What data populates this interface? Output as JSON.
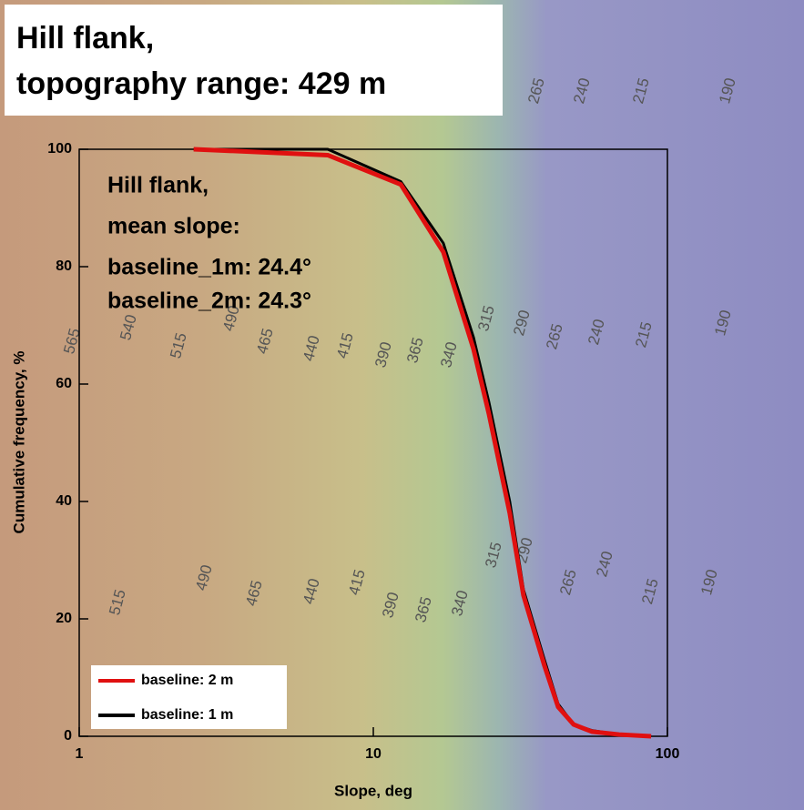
{
  "chart_data": {
    "type": "line",
    "title": [
      "Hill flank,",
      "topography range: 429 m"
    ],
    "annotation": [
      "Hill flank,",
      "mean slope:",
      "baseline_1m: 24.4°",
      "baseline_2m: 24.3°"
    ],
    "x_label": "Slope, deg",
    "y_label": "Cumulative frequency, %",
    "x_scale": "log",
    "xlim": [
      1,
      100
    ],
    "xticks": [
      1,
      10,
      100
    ],
    "ylim": [
      0,
      100
    ],
    "yticks": [
      0,
      20,
      40,
      60,
      80,
      100
    ],
    "legend": "lower left",
    "x": [
      2.45,
      7,
      12.4,
      17.3,
      21.9,
      24.7,
      29.1,
      32.4,
      38.2,
      42.5,
      48,
      55.3,
      68.5,
      88
    ],
    "series": [
      {
        "name": "baseline: 2 m",
        "color": "#e01010",
        "values": [
          100,
          99,
          94,
          82.5,
          66,
          55,
          38,
          24,
          12,
          5,
          2,
          0.8,
          0.3,
          0
        ]
      },
      {
        "name": "baseline: 1 m",
        "color": "#000000",
        "values": [
          100,
          100,
          94.5,
          84,
          68,
          57,
          40,
          25,
          13,
          5.5,
          2,
          1,
          0.3,
          0
        ]
      }
    ],
    "map_labels": [
      "265",
      "240",
      "215",
      "190",
      "565",
      "540",
      "515",
      "490",
      "465",
      "440",
      "415",
      "390",
      "365",
      "340",
      "315",
      "290",
      "265",
      "240",
      "215",
      "190",
      "515",
      "490",
      "465",
      "440",
      "415",
      "390",
      "365",
      "340",
      "315",
      "290",
      "265",
      "240",
      "215",
      "190"
    ]
  }
}
